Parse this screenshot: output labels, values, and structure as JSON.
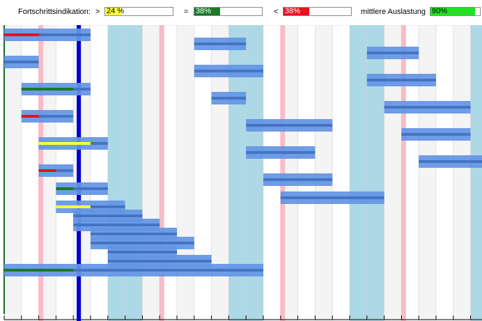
{
  "legend": {
    "title": "Fortschrittsindikation:",
    "greater_symbol": ">",
    "equal_symbol": "=",
    "less_symbol": "<",
    "greater_value": "24 %",
    "equal_value": "38%",
    "less_value": "38%",
    "utilization_label": "mittlere Auslastung",
    "utilization_value": "90%",
    "greater_fraction": 0.24,
    "equal_fraction": 0.38,
    "less_fraction": 0.38,
    "utilization_fraction": 0.9,
    "colors": {
      "greater": "#ffff40",
      "equal": "#1a7a2a",
      "less": "#e8101e",
      "utilization": "#22e022"
    }
  },
  "chart_data": {
    "type": "gantt",
    "time_units": 28,
    "today_marker": 4.2,
    "column_colors": {
      "odd": "#f4f4f4",
      "even": "#ffffff",
      "weekend": "#add8e6",
      "holiday": "#f7bcc6",
      "bar": "#6495e4",
      "bar_line": "#4474c4",
      "today": "#0000cc"
    },
    "weekend_columns": [
      6,
      7,
      13,
      14,
      20,
      21,
      27
    ],
    "holiday_lines": [
      2.1,
      9.1,
      16.1,
      23.1
    ],
    "tasks": [
      {
        "start": 0,
        "end": 5,
        "progress": 2,
        "status": "less"
      },
      {
        "start": 11,
        "end": 14,
        "progress": null,
        "status": null
      },
      {
        "start": 21,
        "end": 24,
        "progress": null,
        "status": null
      },
      {
        "start": 0,
        "end": 2,
        "progress": null,
        "status": null
      },
      {
        "start": 11,
        "end": 15,
        "progress": null,
        "status": null
      },
      {
        "start": 21,
        "end": 25,
        "progress": null,
        "status": null
      },
      {
        "start": 1,
        "end": 5,
        "progress": 4,
        "status": "equal"
      },
      {
        "start": 12,
        "end": 14,
        "progress": null,
        "status": null
      },
      {
        "start": 22,
        "end": 27,
        "progress": null,
        "status": null
      },
      {
        "start": 1,
        "end": 4,
        "progress": 2,
        "status": "less"
      },
      {
        "start": 14,
        "end": 19,
        "progress": null,
        "status": null
      },
      {
        "start": 23,
        "end": 27,
        "progress": null,
        "status": null
      },
      {
        "start": 2,
        "end": 6,
        "progress": 5,
        "status": "greater"
      },
      {
        "start": 14,
        "end": 18,
        "progress": null,
        "status": null
      },
      {
        "start": 24,
        "end": 28,
        "progress": null,
        "status": null
      },
      {
        "start": 2,
        "end": 4,
        "progress": 3,
        "status": "less"
      },
      {
        "start": 15,
        "end": 19,
        "progress": null,
        "status": null
      },
      {
        "start": 3,
        "end": 6,
        "progress": 4,
        "status": "equal"
      },
      {
        "start": 16,
        "end": 22,
        "progress": null,
        "status": null
      },
      {
        "start": 3,
        "end": 7,
        "progress": 5,
        "status": "greater"
      },
      {
        "start": 4,
        "end": 8,
        "progress": null,
        "status": null
      },
      {
        "start": 4,
        "end": 9,
        "progress": null,
        "status": null
      },
      {
        "start": 5,
        "end": 10,
        "progress": null,
        "status": null
      },
      {
        "start": 5,
        "end": 11,
        "progress": null,
        "status": null
      },
      {
        "start": 6,
        "end": 10,
        "progress": null,
        "status": null
      },
      {
        "start": 6,
        "end": 12,
        "progress": null,
        "status": null
      },
      {
        "start": 0,
        "end": 15,
        "progress": 4,
        "status": "equal"
      }
    ]
  }
}
